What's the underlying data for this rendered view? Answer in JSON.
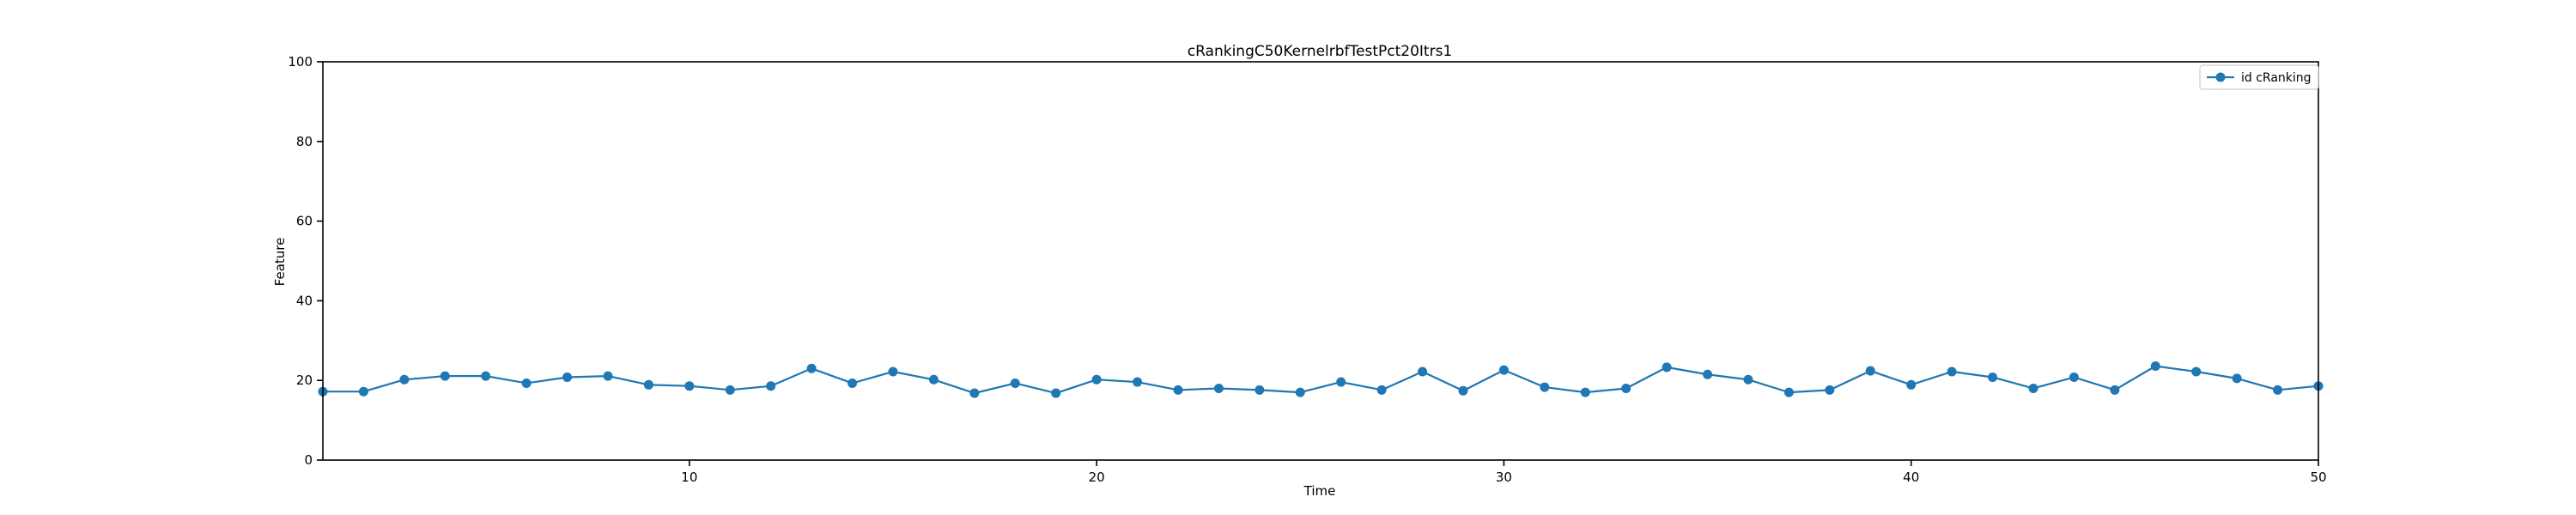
{
  "chart_data": {
    "type": "line",
    "title": "cRankingC50KernelrbfTestPct20Itrs1",
    "xlabel": "Time",
    "ylabel": "Feature",
    "xlim": [
      1,
      50
    ],
    "ylim": [
      0,
      100
    ],
    "xticks": [
      10,
      20,
      30,
      40,
      50
    ],
    "yticks": [
      0,
      20,
      40,
      60,
      80,
      100
    ],
    "grid": false,
    "legend_position": "top-right",
    "series": [
      {
        "name": "id cRanking",
        "color": "#1f77b4",
        "marker": "circle",
        "x": [
          1,
          2,
          3,
          4,
          5,
          6,
          7,
          8,
          9,
          10,
          11,
          12,
          13,
          14,
          15,
          16,
          17,
          18,
          19,
          20,
          21,
          22,
          23,
          24,
          25,
          26,
          27,
          28,
          29,
          30,
          31,
          32,
          33,
          34,
          35,
          36,
          37,
          38,
          39,
          40,
          41,
          42,
          43,
          44,
          45,
          46,
          47,
          48,
          49,
          50
        ],
        "y": [
          17.2,
          17.2,
          20.2,
          21.1,
          21.1,
          19.3,
          20.8,
          21.1,
          18.9,
          18.6,
          17.6,
          18.6,
          23.0,
          19.3,
          22.2,
          20.2,
          16.8,
          19.3,
          16.8,
          20.2,
          19.6,
          17.6,
          18.0,
          17.6,
          17.0,
          19.6,
          17.6,
          22.2,
          17.4,
          22.6,
          18.3,
          17.0,
          18.0,
          23.3,
          21.5,
          20.2,
          17.0,
          17.6,
          22.4,
          18.9,
          22.2,
          20.8,
          18.0,
          20.8,
          17.6,
          23.6,
          22.2,
          20.5,
          17.6,
          18.6
        ]
      }
    ]
  }
}
